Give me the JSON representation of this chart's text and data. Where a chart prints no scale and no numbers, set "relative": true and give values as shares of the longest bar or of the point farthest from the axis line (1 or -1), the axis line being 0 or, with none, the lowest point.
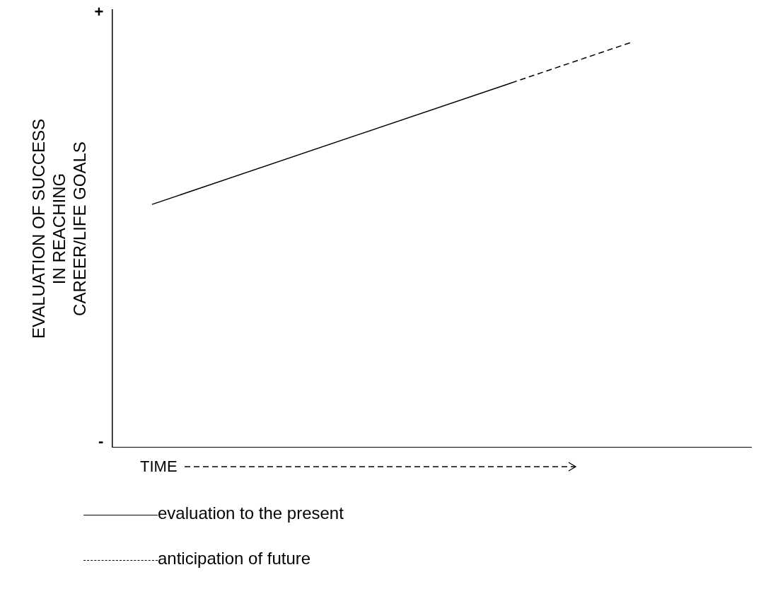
{
  "chart_data": {
    "type": "line",
    "relative": true,
    "xlabel": "TIME",
    "ylabel": "EVALUATION OF SUCCESS\nIN REACHING\nCAREER/LIFE GOALS",
    "categories": [
      null,
      null,
      null,
      null,
      null,
      null,
      null,
      null,
      null,
      null,
      null,
      null,
      null,
      null,
      null,
      null,
      null
    ],
    "series": [
      {
        "name": "evaluation to the present",
        "color": "#000000",
        "line_style": "solid",
        "values": [
          null,
          0.6,
          null,
          null,
          null,
          null,
          null,
          null,
          null,
          null,
          0.9,
          null,
          null,
          null,
          null,
          null,
          null
        ]
      },
      {
        "name": "anticipation of future",
        "color": "#000000",
        "line_style": "dashed",
        "values": [
          null,
          null,
          null,
          null,
          null,
          null,
          null,
          null,
          null,
          null,
          0.9,
          null,
          null,
          1,
          null,
          null,
          null
        ]
      }
    ],
    "annotations": [
      "+",
      "-"
    ],
    "legend": "bottom left",
    "grid": false,
    "marker": "none"
  }
}
